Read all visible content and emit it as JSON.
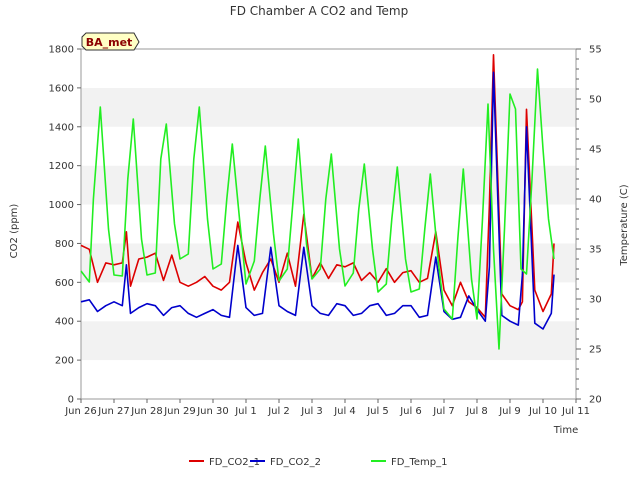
{
  "chart_data": {
    "type": "line",
    "title": "FD Chamber A CO2 and Temp",
    "xlabel": "Time",
    "ylabel": "CO2 (ppm)",
    "y2label": "Temperature (C)",
    "badge": "BA_met",
    "xlim": [
      "2024-06-26",
      "2024-07-11"
    ],
    "ylim": [
      0,
      1800
    ],
    "y2lim": [
      20,
      55
    ],
    "x_ticks": [
      "Jun 26",
      "Jun 27",
      "Jun 28",
      "Jun 29",
      "Jun 30",
      "Jul 1",
      "Jul 2",
      "Jul 3",
      "Jul 4",
      "Jul 5",
      "Jul 6",
      "Jul 7",
      "Jul 8",
      "Jul 9",
      "Jul 10",
      "Jul 11"
    ],
    "y_ticks": [
      0,
      200,
      400,
      600,
      800,
      1000,
      1200,
      1400,
      1600,
      1800
    ],
    "y2_ticks": [
      20,
      25,
      30,
      35,
      40,
      45,
      50,
      55
    ],
    "grid": "horizontal bands",
    "legend_position": "bottom",
    "series": [
      {
        "name": "FD_CO2_1",
        "color": "#dd0000",
        "axis": "left",
        "x": [
          "2024-06-26 00:00",
          "2024-06-26 06:00",
          "2024-06-26 12:00",
          "2024-06-26 18:00",
          "2024-06-27 00:00",
          "2024-06-27 06:00",
          "2024-06-27 09:00",
          "2024-06-27 12:00",
          "2024-06-27 18:00",
          "2024-06-28 00:00",
          "2024-06-28 06:00",
          "2024-06-28 12:00",
          "2024-06-28 18:00",
          "2024-06-29 00:00",
          "2024-06-29 06:00",
          "2024-06-29 12:00",
          "2024-06-29 18:00",
          "2024-06-30 00:00",
          "2024-06-30 06:00",
          "2024-06-30 12:00",
          "2024-06-30 18:00",
          "2024-07-01 00:00",
          "2024-07-01 06:00",
          "2024-07-01 12:00",
          "2024-07-01 18:00",
          "2024-07-02 00:00",
          "2024-07-02 06:00",
          "2024-07-02 12:00",
          "2024-07-02 18:00",
          "2024-07-03 00:00",
          "2024-07-03 06:00",
          "2024-07-03 12:00",
          "2024-07-03 18:00",
          "2024-07-04 00:00",
          "2024-07-04 06:00",
          "2024-07-04 12:00",
          "2024-07-04 18:00",
          "2024-07-05 00:00",
          "2024-07-05 06:00",
          "2024-07-05 12:00",
          "2024-07-05 18:00",
          "2024-07-06 00:00",
          "2024-07-06 06:00",
          "2024-07-06 12:00",
          "2024-07-06 18:00",
          "2024-07-07 00:00",
          "2024-07-07 06:00",
          "2024-07-07 12:00",
          "2024-07-07 18:00",
          "2024-07-08 00:00",
          "2024-07-08 06:00",
          "2024-07-08 09:00",
          "2024-07-08 12:00",
          "2024-07-08 18:00",
          "2024-07-09 00:00",
          "2024-07-09 06:00",
          "2024-07-09 09:00",
          "2024-07-09 12:00",
          "2024-07-09 18:00",
          "2024-07-10 00:00",
          "2024-07-10 06:00",
          "2024-07-10 08:00"
        ],
        "values": [
          790,
          770,
          600,
          700,
          690,
          700,
          860,
          580,
          720,
          730,
          750,
          610,
          740,
          600,
          580,
          600,
          630,
          580,
          560,
          600,
          910,
          700,
          560,
          650,
          720,
          600,
          750,
          580,
          950,
          620,
          700,
          620,
          690,
          680,
          700,
          610,
          650,
          600,
          670,
          600,
          650,
          660,
          600,
          620,
          860,
          560,
          480,
          600,
          500,
          470,
          420,
          1000,
          1770,
          540,
          480,
          460,
          500,
          1490,
          560,
          450,
          540,
          800
        ]
      },
      {
        "name": "FD_CO2_2",
        "color": "#0000cc",
        "axis": "left",
        "x": [
          "2024-06-26 00:00",
          "2024-06-26 06:00",
          "2024-06-26 12:00",
          "2024-06-26 18:00",
          "2024-06-27 00:00",
          "2024-06-27 06:00",
          "2024-06-27 09:00",
          "2024-06-27 12:00",
          "2024-06-27 18:00",
          "2024-06-28 00:00",
          "2024-06-28 06:00",
          "2024-06-28 12:00",
          "2024-06-28 18:00",
          "2024-06-29 00:00",
          "2024-06-29 06:00",
          "2024-06-29 12:00",
          "2024-06-29 18:00",
          "2024-06-30 00:00",
          "2024-06-30 06:00",
          "2024-06-30 12:00",
          "2024-06-30 18:00",
          "2024-07-01 00:00",
          "2024-07-01 06:00",
          "2024-07-01 12:00",
          "2024-07-01 18:00",
          "2024-07-02 00:00",
          "2024-07-02 06:00",
          "2024-07-02 12:00",
          "2024-07-02 18:00",
          "2024-07-03 00:00",
          "2024-07-03 06:00",
          "2024-07-03 12:00",
          "2024-07-03 18:00",
          "2024-07-04 00:00",
          "2024-07-04 06:00",
          "2024-07-04 12:00",
          "2024-07-04 18:00",
          "2024-07-05 00:00",
          "2024-07-05 06:00",
          "2024-07-05 12:00",
          "2024-07-05 18:00",
          "2024-07-06 00:00",
          "2024-07-06 06:00",
          "2024-07-06 12:00",
          "2024-07-06 18:00",
          "2024-07-07 00:00",
          "2024-07-07 06:00",
          "2024-07-07 12:00",
          "2024-07-07 18:00",
          "2024-07-08 00:00",
          "2024-07-08 06:00",
          "2024-07-08 09:00",
          "2024-07-08 12:00",
          "2024-07-08 18:00",
          "2024-07-09 00:00",
          "2024-07-09 06:00",
          "2024-07-09 09:00",
          "2024-07-09 12:00",
          "2024-07-09 18:00",
          "2024-07-10 00:00",
          "2024-07-10 06:00",
          "2024-07-10 08:00"
        ],
        "values": [
          500,
          510,
          450,
          480,
          500,
          480,
          690,
          440,
          470,
          490,
          480,
          430,
          470,
          480,
          440,
          420,
          440,
          460,
          430,
          420,
          790,
          470,
          430,
          440,
          780,
          480,
          450,
          430,
          780,
          480,
          440,
          430,
          490,
          480,
          430,
          440,
          480,
          490,
          430,
          440,
          480,
          480,
          420,
          430,
          730,
          450,
          410,
          420,
          530,
          460,
          400,
          680,
          1680,
          430,
          400,
          380,
          640,
          1400,
          390,
          360,
          440,
          640
        ]
      },
      {
        "name": "FD_Temp_1",
        "color": "#22ee22",
        "axis": "right",
        "x": [
          "2024-06-26 00:00",
          "2024-06-26 06:00",
          "2024-06-26 09:00",
          "2024-06-26 14:00",
          "2024-06-26 20:00",
          "2024-06-27 00:00",
          "2024-06-27 06:00",
          "2024-06-27 10:00",
          "2024-06-27 14:00",
          "2024-06-27 20:00",
          "2024-06-28 00:00",
          "2024-06-28 06:00",
          "2024-06-28 10:00",
          "2024-06-28 14:00",
          "2024-06-28 20:00",
          "2024-06-29 00:00",
          "2024-06-29 06:00",
          "2024-06-29 10:00",
          "2024-06-29 14:00",
          "2024-06-29 20:00",
          "2024-06-30 00:00",
          "2024-06-30 06:00",
          "2024-06-30 10:00",
          "2024-06-30 14:00",
          "2024-06-30 20:00",
          "2024-07-01 00:00",
          "2024-07-01 06:00",
          "2024-07-01 10:00",
          "2024-07-01 14:00",
          "2024-07-01 20:00",
          "2024-07-02 00:00",
          "2024-07-02 06:00",
          "2024-07-02 10:00",
          "2024-07-02 14:00",
          "2024-07-02 20:00",
          "2024-07-03 00:00",
          "2024-07-03 06:00",
          "2024-07-03 10:00",
          "2024-07-03 14:00",
          "2024-07-03 20:00",
          "2024-07-04 00:00",
          "2024-07-04 06:00",
          "2024-07-04 10:00",
          "2024-07-04 14:00",
          "2024-07-04 20:00",
          "2024-07-05 00:00",
          "2024-07-05 06:00",
          "2024-07-05 10:00",
          "2024-07-05 14:00",
          "2024-07-05 20:00",
          "2024-07-06 00:00",
          "2024-07-06 06:00",
          "2024-07-06 10:00",
          "2024-07-06 14:00",
          "2024-07-06 20:00",
          "2024-07-07 00:00",
          "2024-07-07 06:00",
          "2024-07-07 10:00",
          "2024-07-07 14:00",
          "2024-07-07 20:00",
          "2024-07-08 00:00",
          "2024-07-08 04:00",
          "2024-07-08 08:00",
          "2024-07-08 12:00",
          "2024-07-08 16:00",
          "2024-07-08 20:00",
          "2024-07-09 00:00",
          "2024-07-09 04:00",
          "2024-07-09 08:00",
          "2024-07-09 12:00",
          "2024-07-09 16:00",
          "2024-07-09 20:00",
          "2024-07-10 00:00",
          "2024-07-10 04:00",
          "2024-07-10 08:00"
        ],
        "values": [
          32.8,
          31.7,
          40.0,
          49.2,
          37.0,
          32.4,
          32.3,
          42.0,
          48.0,
          36.0,
          32.4,
          32.6,
          44.0,
          47.5,
          37.5,
          34.0,
          34.5,
          44.0,
          49.2,
          38.0,
          33.0,
          33.5,
          40.0,
          45.5,
          37.0,
          31.5,
          33.8,
          40.0,
          45.3,
          36.5,
          31.8,
          33.0,
          39.5,
          46.0,
          35.5,
          32.0,
          33.0,
          40.0,
          44.5,
          35.0,
          31.3,
          32.6,
          39.0,
          43.5,
          35.0,
          30.7,
          31.5,
          38.0,
          43.2,
          34.0,
          30.7,
          31.0,
          37.0,
          42.5,
          33.5,
          29.0,
          28.0,
          36.0,
          43.0,
          32.0,
          28.0,
          38.0,
          49.5,
          35.0,
          25.0,
          37.0,
          50.5,
          49.0,
          33.0,
          32.5,
          42.0,
          53.0,
          45.0,
          38.0,
          34.0
        ]
      }
    ]
  }
}
